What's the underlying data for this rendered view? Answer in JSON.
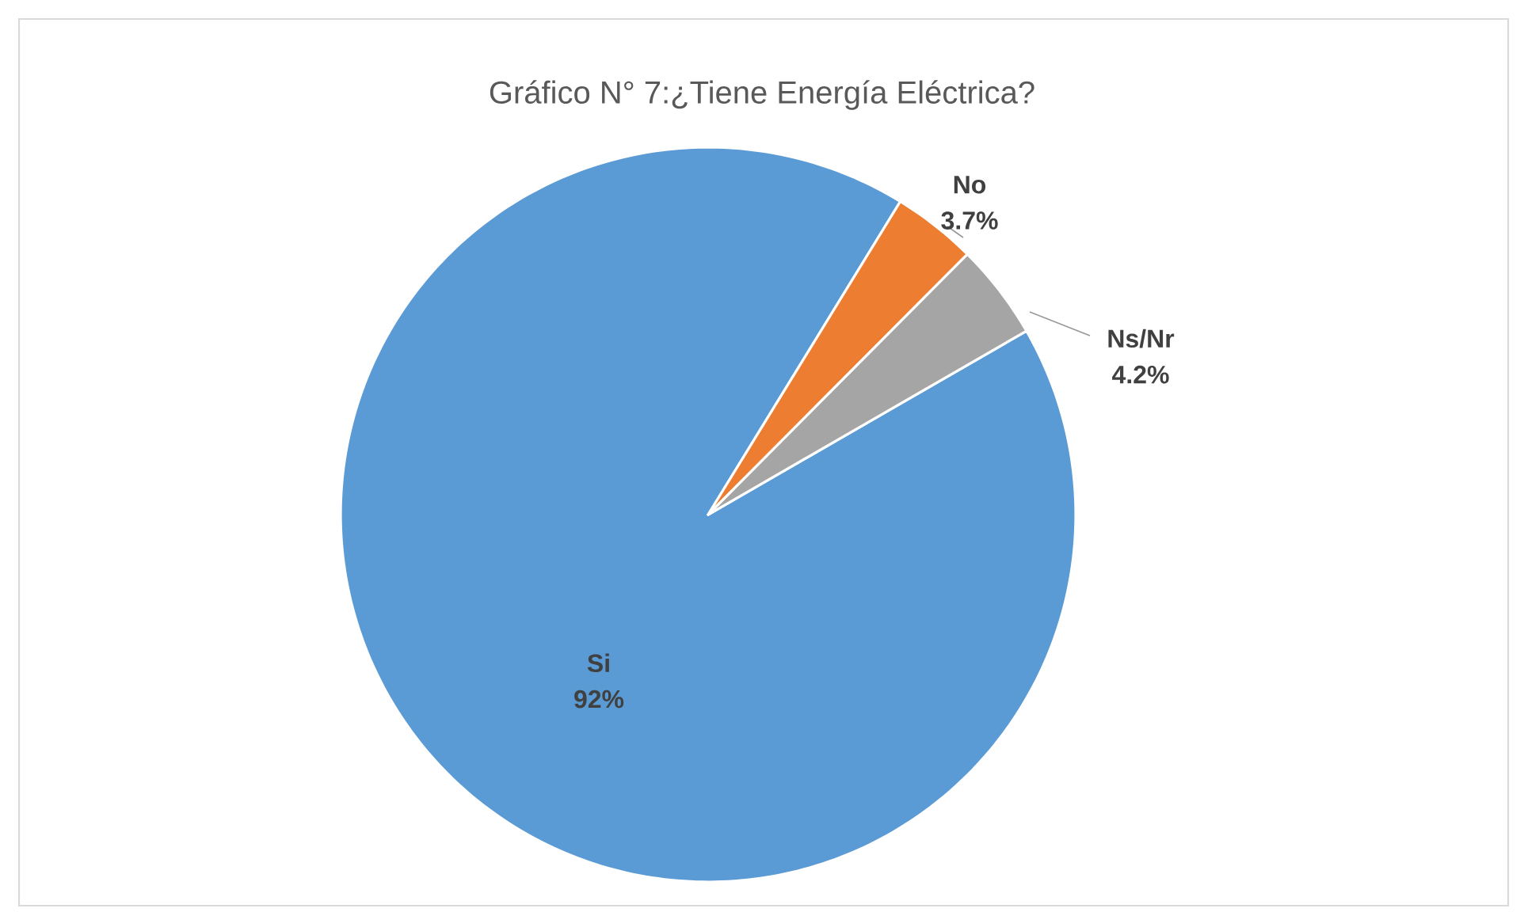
{
  "chart_data": {
    "type": "pie",
    "title": "Gráfico N° 7:¿Tiene Energía Eléctrica?",
    "categories": [
      "Si",
      "No",
      "Ns/Nr"
    ],
    "values": [
      92,
      3.7,
      4.2
    ],
    "value_labels": [
      "92%",
      "3.7%",
      "4.2%"
    ],
    "colors": [
      "#5b9bd5",
      "#ed7d31",
      "#a5a5a5"
    ]
  }
}
